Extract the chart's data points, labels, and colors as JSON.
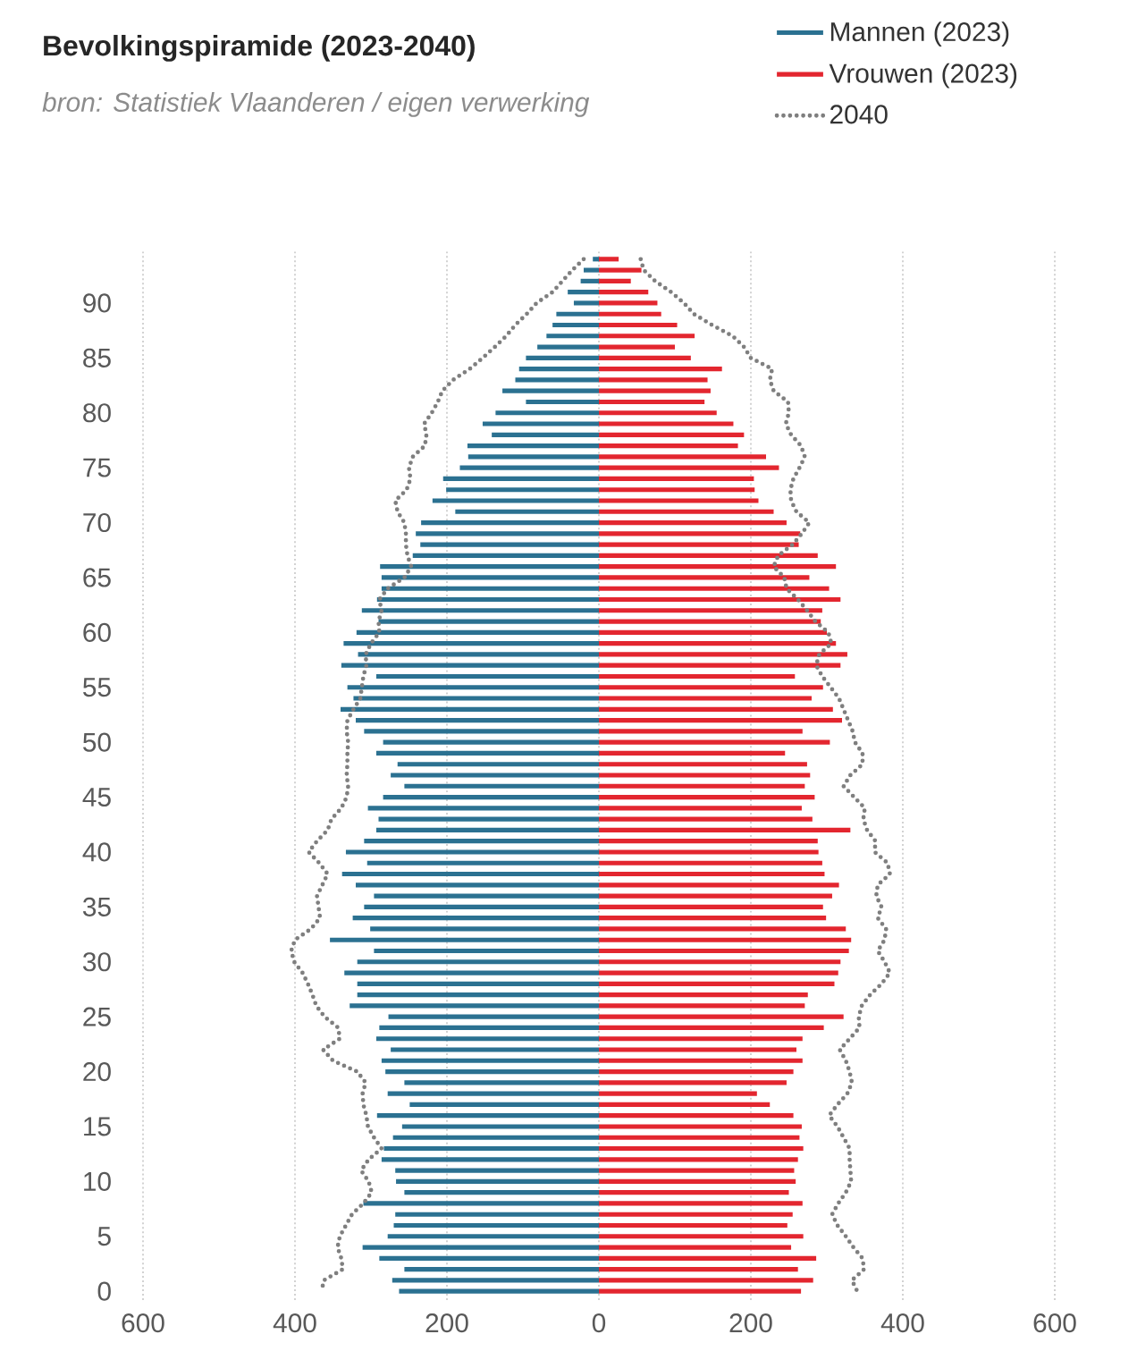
{
  "chart_data": {
    "type": "bar",
    "orientation": "horizontal",
    "title": "Bevolkingspiramide (2023-2040)",
    "subtitle": "bron: Statistiek Vlaanderen / eigen verwerking",
    "categories": [
      null,
      null,
      null,
      null,
      "90",
      null,
      null,
      null,
      null,
      "85",
      null,
      null,
      null,
      null,
      "80",
      null,
      null,
      null,
      null,
      "75",
      null,
      null,
      null,
      null,
      "70",
      null,
      null,
      null,
      null,
      "65",
      null,
      null,
      null,
      null,
      "60",
      null,
      null,
      null,
      null,
      "55",
      null,
      null,
      null,
      null,
      "50",
      null,
      null,
      null,
      null,
      "45",
      null,
      null,
      null,
      null,
      "40",
      null,
      null,
      null,
      null,
      "35",
      null,
      null,
      null,
      null,
      "30",
      null,
      null,
      null,
      null,
      "25",
      null,
      null,
      null,
      null,
      "20",
      null,
      null,
      null,
      null,
      "15",
      null,
      null,
      null,
      null,
      "10",
      null,
      null,
      null,
      null,
      "5",
      null,
      null,
      null,
      null,
      "0"
    ],
    "series": [
      {
        "name": "Mannen (2023)",
        "color": "#2b7191",
        "values": [
          -8,
          -20,
          -24,
          -41,
          -33,
          -56,
          -61,
          -69,
          -81,
          -96,
          -105,
          -110,
          -127,
          -96,
          -136,
          -153,
          -141,
          -173,
          -172,
          -183,
          -205,
          -201,
          -219,
          -189,
          -234,
          -241,
          -235,
          -245,
          -288,
          -286,
          -286,
          -292,
          -312,
          -290,
          -319,
          -336,
          -317,
          -339,
          -293,
          -331,
          -323,
          -340,
          -320,
          -309,
          -284,
          -293,
          -265,
          -274,
          -256,
          -284,
          -304,
          -290,
          -293,
          -309,
          -333,
          -305,
          -338,
          -320,
          -296,
          -309,
          -324,
          -301,
          -354,
          -296,
          -318,
          -335,
          -318,
          -318,
          -328,
          -277,
          -289,
          -293,
          -274,
          -286,
          -281,
          -256,
          -278,
          -249,
          -292,
          -259,
          -271,
          -283,
          -286,
          -268,
          -267,
          -256,
          -310,
          -268,
          -270,
          -278,
          -311,
          -289,
          -256,
          -272,
          -263
        ]
      },
      {
        "name": "Vrouwen (2023)",
        "color": "#e3262f",
        "values": [
          26,
          56,
          42,
          65,
          77,
          82,
          103,
          126,
          100,
          121,
          162,
          143,
          147,
          139,
          155,
          177,
          191,
          183,
          220,
          237,
          204,
          205,
          210,
          230,
          247,
          265,
          263,
          288,
          312,
          277,
          303,
          318,
          294,
          292,
          300,
          312,
          327,
          318,
          258,
          295,
          280,
          308,
          320,
          268,
          304,
          245,
          274,
          278,
          271,
          284,
          267,
          281,
          331,
          288,
          289,
          294,
          297,
          316,
          307,
          295,
          299,
          325,
          332,
          329,
          318,
          315,
          310,
          275,
          271,
          322,
          296,
          268,
          260,
          268,
          256,
          247,
          208,
          225,
          256,
          267,
          264,
          269,
          262,
          257,
          259,
          250,
          268,
          255,
          248,
          269,
          253,
          286,
          262,
          282,
          266
        ]
      },
      {
        "name": "2040",
        "type": "line",
        "line_style": "dotted",
        "color": "#7f7f7f",
        "values": [
          -20,
          -35,
          -48,
          -61,
          -82,
          -95,
          -110,
          -122,
          -137,
          -153,
          -170,
          -192,
          -206,
          -212,
          -220,
          -230,
          -227,
          -229,
          -245,
          -250,
          -248,
          -253,
          -268,
          -265,
          -256,
          -254,
          -254,
          -252,
          -247,
          -256,
          -278,
          -289,
          -286,
          -290,
          -289,
          -300,
          -307,
          -306,
          -310,
          -312,
          -314,
          -323,
          -331,
          -332,
          -330,
          -331,
          -331,
          -332,
          -330,
          -332,
          -339,
          -352,
          -357,
          -371,
          -382,
          -368,
          -357,
          -364,
          -371,
          -369,
          -367,
          -379,
          -400,
          -405,
          -401,
          -390,
          -383,
          -377,
          -372,
          -361,
          -343,
          -341,
          -363,
          -350,
          -318,
          -307,
          -311,
          -310,
          -306,
          -304,
          -296,
          -286,
          -303,
          -313,
          -303,
          -299,
          -310,
          -325,
          -333,
          -341,
          -344,
          -339,
          -337,
          -362,
          -365
        ]
      },
      {
        "type": "line",
        "line_style": "dotted",
        "color": "#7f7f7f",
        "values": [
          55,
          59,
          74,
          95,
          112,
          125,
          149,
          176,
          191,
          200,
          228,
          225,
          230,
          249,
          250,
          246,
          253,
          266,
          271,
          264,
          256,
          252,
          253,
          260,
          277,
          267,
          255,
          236,
          230,
          244,
          247,
          262,
          274,
          285,
          302,
          306,
          290,
          286,
          294,
          305,
          316,
          322,
          328,
          334,
          337,
          347,
          347,
          331,
          322,
          336,
          350,
          348,
          353,
          364,
          363,
          380,
          383,
          367,
          365,
          372,
          367,
          378,
          376,
          367,
          376,
          383,
          372,
          357,
          346,
          342,
          343,
          330,
          317,
          325,
          330,
          333,
          327,
          314,
          303,
          314,
          322,
          330,
          330,
          331,
          332,
          325,
          315,
          307,
          314,
          325,
          335,
          347,
          349,
          333,
          340
        ]
      }
    ],
    "stacked": true,
    "xlim": [
      -600,
      600
    ],
    "xticks": [
      {
        "value": -600,
        "label": "600"
      },
      {
        "value": -400,
        "label": "400"
      },
      {
        "value": -200,
        "label": "200"
      },
      0,
      200,
      400,
      600
    ],
    "grid": "x",
    "legend": "top right"
  }
}
